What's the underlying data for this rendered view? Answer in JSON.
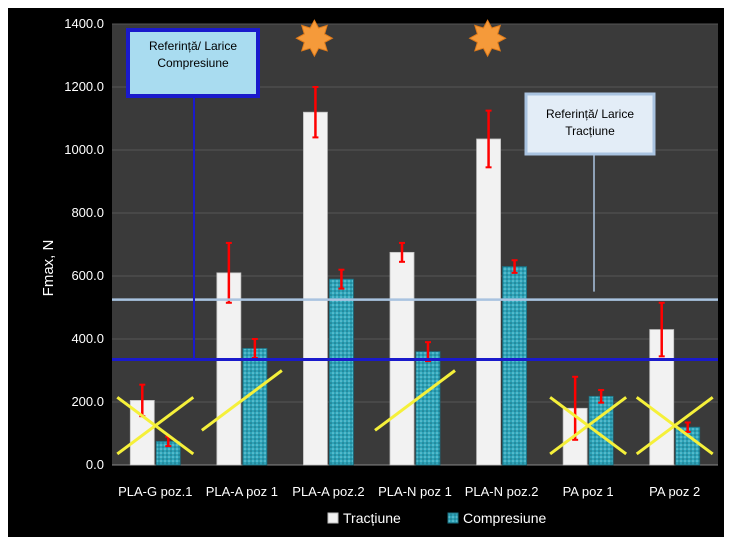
{
  "chart_data": {
    "type": "bar",
    "ylabel": "Fmax, N",
    "xlabel": "",
    "ylim": [
      0,
      1400
    ],
    "yticks": [
      0,
      200,
      400,
      600,
      800,
      1000,
      1200,
      1400
    ],
    "ytick_labels": [
      "0.0",
      "200.0",
      "400.0",
      "600.0",
      "800.0",
      "1000.0",
      "1200.0",
      "1400.0"
    ],
    "categories": [
      "PLA-G poz.1",
      "PLA-A poz 1",
      "PLA-A poz.2",
      "PLA-N poz 1",
      "PLA-N poz.2",
      "PA poz 1",
      "PA poz 2"
    ],
    "series": [
      {
        "name": "Tracțiune",
        "color": "#f2f2f2",
        "values": [
          205,
          610,
          1120,
          675,
          1035,
          180,
          430
        ],
        "error": [
          50,
          95,
          80,
          30,
          90,
          100,
          85
        ]
      },
      {
        "name": "Compresiune",
        "color": "#2ea3b8",
        "values": [
          75,
          370,
          590,
          360,
          630,
          218,
          120
        ],
        "error": [
          15,
          30,
          30,
          30,
          20,
          20,
          15
        ]
      }
    ],
    "error_bar_color": "#ff0000",
    "reference_lines": [
      {
        "label": "Referință/ Larice Compresiune",
        "value": 335,
        "color": "#1a1acc"
      },
      {
        "label": "Referință/ Larice Tracțiune",
        "value": 525,
        "color": "#a9c3e0"
      }
    ],
    "crossed_categories": [
      "PLA-G poz.1",
      "PA poz 1",
      "PA poz 2"
    ],
    "partial_strike_categories": [
      "PLA-A poz 1",
      "PLA-N poz 1"
    ],
    "star_marked_categories": [
      "PLA-A poz.2",
      "PLA-N poz.2"
    ],
    "grid": true,
    "legend_position": "bottom"
  },
  "callouts": {
    "compression": "Referință/ Larice\nCompresiune",
    "traction": "Referință/ Larice\nTracțiune"
  }
}
